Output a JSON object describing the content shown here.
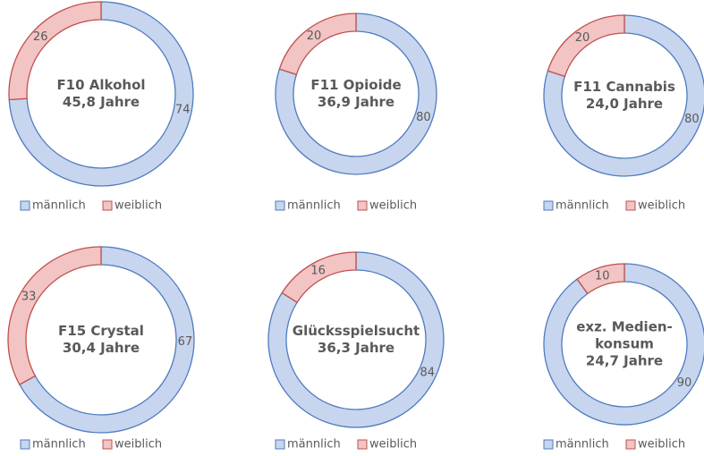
{
  "chart_data": [
    {
      "type": "donut",
      "title": [
        "F10 Alkohol"
      ],
      "subtitle": "45,8 Jahre",
      "categories": [
        "männlich",
        "weiblich"
      ],
      "values": [
        74,
        26
      ],
      "colors": [
        "#c7d5ee",
        "#f2c4c4"
      ],
      "edge_colors": [
        "#4f7bc0",
        "#c0504d"
      ]
    },
    {
      "type": "donut",
      "title": [
        "F11 Opioide"
      ],
      "subtitle": "36,9 Jahre",
      "categories": [
        "männlich",
        "weiblich"
      ],
      "values": [
        80,
        20
      ],
      "colors": [
        "#c7d5ee",
        "#f2c4c4"
      ],
      "edge_colors": [
        "#4f7bc0",
        "#c0504d"
      ]
    },
    {
      "type": "donut",
      "title": [
        "F11 Cannabis"
      ],
      "subtitle": "24,0 Jahre",
      "categories": [
        "männlich",
        "weiblich"
      ],
      "values": [
        80,
        20
      ],
      "colors": [
        "#c7d5ee",
        "#f2c4c4"
      ],
      "edge_colors": [
        "#4f7bc0",
        "#c0504d"
      ]
    },
    {
      "type": "donut",
      "title": [
        "F15 Crystal"
      ],
      "subtitle": "30,4 Jahre",
      "categories": [
        "männlich",
        "weiblich"
      ],
      "values": [
        67,
        33
      ],
      "colors": [
        "#c7d5ee",
        "#f2c4c4"
      ],
      "edge_colors": [
        "#4f7bc0",
        "#c0504d"
      ]
    },
    {
      "type": "donut",
      "title": [
        "Glücksspielsucht"
      ],
      "subtitle": "36,3 Jahre",
      "categories": [
        "männlich",
        "weiblich"
      ],
      "values": [
        84,
        16
      ],
      "colors": [
        "#c7d5ee",
        "#f2c4c4"
      ],
      "edge_colors": [
        "#4f7bc0",
        "#c0504d"
      ]
    },
    {
      "type": "donut",
      "title": [
        "exz. Medien-",
        "konsum"
      ],
      "subtitle": "24,7 Jahre",
      "categories": [
        "männlich",
        "weiblich"
      ],
      "values": [
        90,
        10
      ],
      "colors": [
        "#c7d5ee",
        "#f2c4c4"
      ],
      "edge_colors": [
        "#4f7bc0",
        "#c0504d"
      ]
    }
  ]
}
